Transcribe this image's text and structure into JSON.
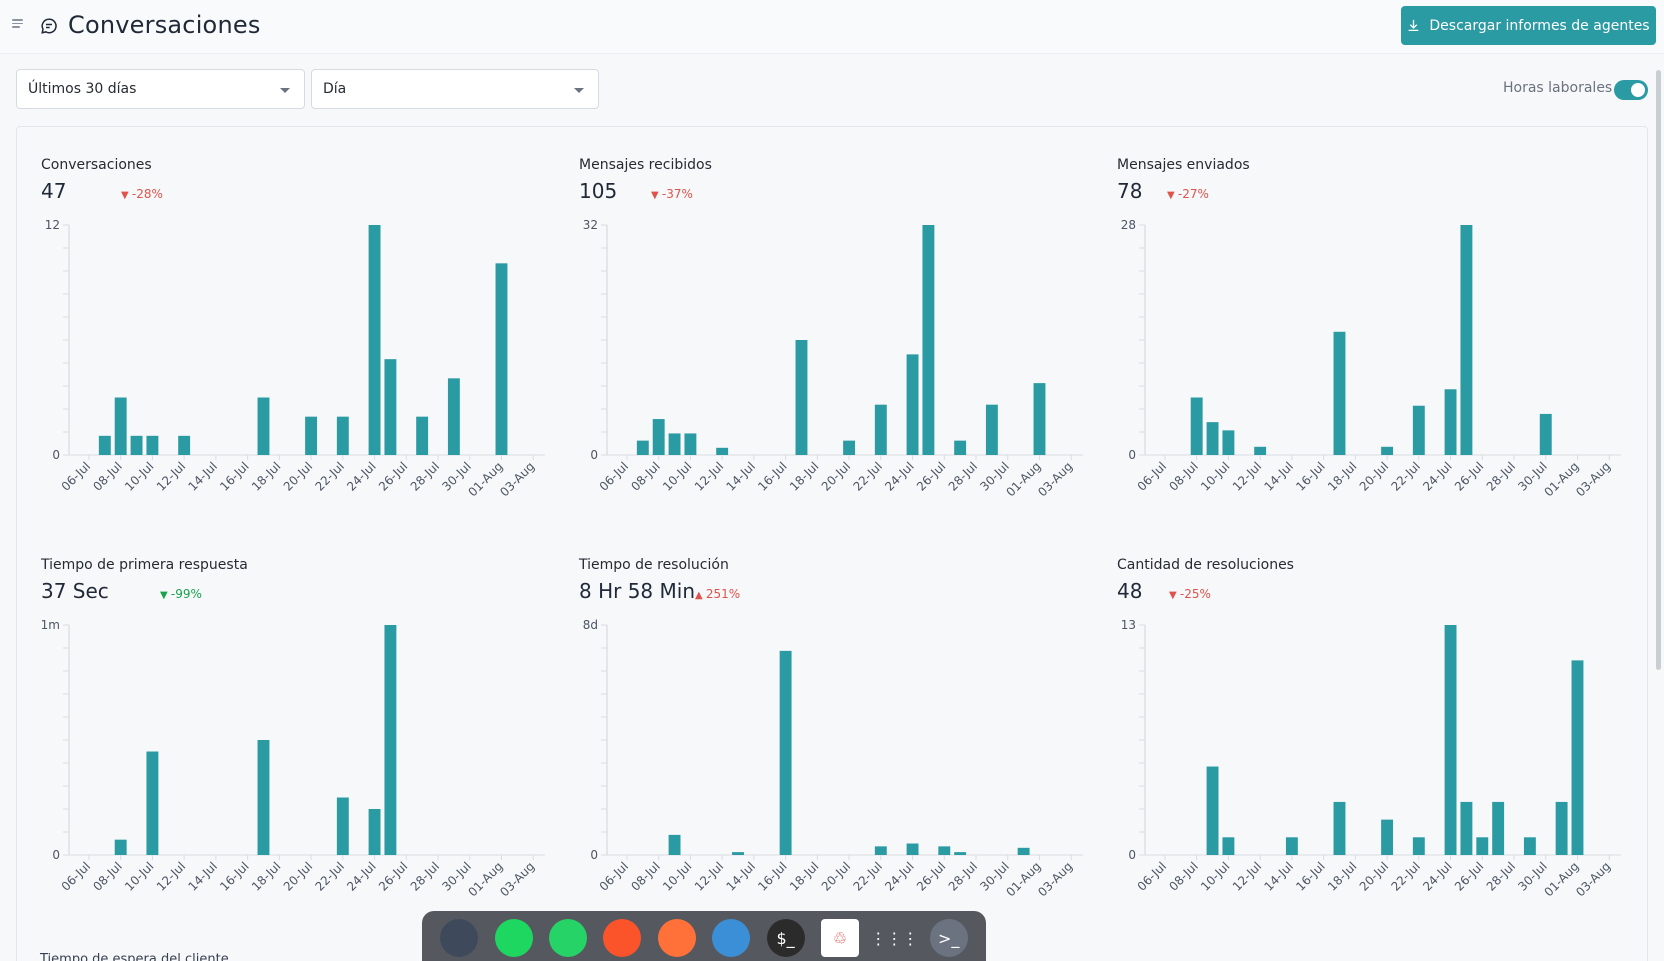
{
  "header": {
    "title": "Conversaciones",
    "download_label": "Descargar informes de agentes"
  },
  "filters": {
    "range": "Últimos 30 días",
    "grouping": "Día",
    "business_hours_label": "Horas laborales",
    "business_hours_on": true
  },
  "colors": {
    "accent": "#2a9aa3",
    "bar": "#2a9aa3",
    "negative": "#e0534a",
    "positive": "#16a34a"
  },
  "metrics": [
    {
      "title": "Conversaciones",
      "value": "47",
      "trend": "-28%",
      "trend_dir": "down",
      "trend_color": "red"
    },
    {
      "title": "Mensajes recibidos",
      "value": "105",
      "trend": "-37%",
      "trend_dir": "down",
      "trend_color": "red"
    },
    {
      "title": "Mensajes enviados",
      "value": "78",
      "trend": "-27%",
      "trend_dir": "down",
      "trend_color": "red"
    },
    {
      "title": "Tiempo de primera respuesta",
      "value": "37 Sec",
      "trend": "-99%",
      "trend_dir": "down",
      "trend_color": "green"
    },
    {
      "title": "Tiempo de resolución",
      "value": "8 Hr 58 Min",
      "trend": "251%",
      "trend_dir": "up",
      "trend_color": "red"
    },
    {
      "title": "Cantidad de resoluciones",
      "value": "48",
      "trend": "-25%",
      "trend_dir": "down",
      "trend_color": "red"
    }
  ],
  "chart_data": [
    {
      "type": "bar",
      "x_tick_labels": [
        "06-Jul",
        "08-Jul",
        "10-Jul",
        "12-Jul",
        "14-Jul",
        "16-Jul",
        "18-Jul",
        "20-Jul",
        "22-Jul",
        "24-Jul",
        "26-Jul",
        "28-Jul",
        "30-Jul",
        "01-Aug",
        "03-Aug"
      ],
      "y_tick_labels": [
        "12",
        "0"
      ],
      "ylim": [
        0,
        12
      ],
      "values": [
        0,
        1,
        3,
        1,
        1,
        0,
        1,
        0,
        0,
        0,
        0,
        3,
        0,
        0,
        2,
        0,
        2,
        0,
        12,
        5,
        0,
        2,
        0,
        4,
        0,
        0,
        10,
        0,
        0,
        0
      ]
    },
    {
      "type": "bar",
      "x_tick_labels": [
        "06-Jul",
        "08-Jul",
        "10-Jul",
        "12-Jul",
        "14-Jul",
        "16-Jul",
        "18-Jul",
        "20-Jul",
        "22-Jul",
        "24-Jul",
        "26-Jul",
        "28-Jul",
        "30-Jul",
        "01-Aug",
        "03-Aug"
      ],
      "y_tick_labels": [
        "32",
        "0"
      ],
      "ylim": [
        0,
        32
      ],
      "values": [
        0,
        2,
        5,
        3,
        3,
        0,
        1,
        0,
        0,
        0,
        0,
        16,
        0,
        0,
        2,
        0,
        7,
        0,
        14,
        32,
        0,
        2,
        0,
        7,
        0,
        0,
        10,
        0,
        0,
        0
      ]
    },
    {
      "type": "bar",
      "x_tick_labels": [
        "06-Jul",
        "08-Jul",
        "10-Jul",
        "12-Jul",
        "14-Jul",
        "16-Jul",
        "18-Jul",
        "20-Jul",
        "22-Jul",
        "24-Jul",
        "26-Jul",
        "28-Jul",
        "30-Jul",
        "01-Aug",
        "03-Aug"
      ],
      "y_tick_labels": [
        "28",
        "0"
      ],
      "ylim": [
        0,
        28
      ],
      "values": [
        0,
        0,
        7,
        4,
        3,
        0,
        1,
        0,
        0,
        0,
        0,
        15,
        0,
        0,
        1,
        0,
        6,
        0,
        8,
        28,
        0,
        0,
        0,
        0,
        5,
        0,
        0,
        0,
        0,
        0
      ]
    },
    {
      "type": "bar",
      "x_tick_labels": [
        "06-Jul",
        "08-Jul",
        "10-Jul",
        "12-Jul",
        "14-Jul",
        "16-Jul",
        "18-Jul",
        "20-Jul",
        "22-Jul",
        "24-Jul",
        "26-Jul",
        "28-Jul",
        "30-Jul",
        "01-Aug",
        "03-Aug"
      ],
      "y_tick_labels": [
        "1m",
        "0"
      ],
      "ylim": [
        0,
        60
      ],
      "values": [
        0,
        0,
        4,
        0,
        27,
        0,
        0,
        0,
        0,
        0,
        0,
        30,
        0,
        0,
        0,
        0,
        15,
        0,
        12,
        60,
        0,
        0,
        0,
        0,
        0,
        0,
        0,
        0,
        0,
        0
      ]
    },
    {
      "type": "bar",
      "x_tick_labels": [
        "06-Jul",
        "08-Jul",
        "10-Jul",
        "12-Jul",
        "14-Jul",
        "16-Jul",
        "18-Jul",
        "20-Jul",
        "22-Jul",
        "24-Jul",
        "26-Jul",
        "28-Jul",
        "30-Jul",
        "01-Aug",
        "03-Aug"
      ],
      "y_tick_labels": [
        "8d",
        "0"
      ],
      "ylim": [
        0,
        8
      ],
      "values": [
        0,
        0,
        0,
        0.7,
        0,
        0,
        0,
        0.1,
        0,
        0,
        7.1,
        0,
        0,
        0,
        0,
        0,
        0.3,
        0,
        0.4,
        0,
        0.3,
        0.1,
        0,
        0,
        0,
        0.25,
        0,
        0,
        0,
        0
      ]
    },
    {
      "type": "bar",
      "x_tick_labels": [
        "06-Jul",
        "08-Jul",
        "10-Jul",
        "12-Jul",
        "14-Jul",
        "16-Jul",
        "18-Jul",
        "20-Jul",
        "22-Jul",
        "24-Jul",
        "26-Jul",
        "28-Jul",
        "30-Jul",
        "01-Aug",
        "03-Aug"
      ],
      "y_tick_labels": [
        "13",
        "0"
      ],
      "ylim": [
        0,
        13
      ],
      "values": [
        0,
        0,
        0,
        5,
        1,
        0,
        0,
        0,
        1,
        0,
        0,
        3,
        0,
        0,
        2,
        0,
        1,
        0,
        13,
        3,
        1,
        3,
        0,
        1,
        0,
        3,
        11,
        0,
        0,
        0
      ]
    }
  ],
  "footer": {
    "partial_label": "Tiempo de espera del cliente"
  },
  "dock": [
    {
      "name": "files-icon",
      "glyph": "",
      "bg": "#3e4a5c"
    },
    {
      "name": "spotify-icon",
      "glyph": "",
      "bg": "#1ed760"
    },
    {
      "name": "whatsapp-icon",
      "glyph": "",
      "bg": "#25d366"
    },
    {
      "name": "brave-icon",
      "glyph": "",
      "bg": "#fb542b"
    },
    {
      "name": "firefox-icon",
      "glyph": "",
      "bg": "#ff7139"
    },
    {
      "name": "quotes-icon",
      "glyph": "",
      "bg": "#3b8fd6"
    },
    {
      "name": "terminal-icon",
      "glyph": "$_",
      "bg": "#2b2b2b"
    },
    {
      "name": "recycle-icon",
      "glyph": "♲",
      "bg": "#ffffff"
    },
    {
      "name": "app-grid-icon",
      "glyph": "⋮⋮⋮",
      "bg": "transparent"
    },
    {
      "name": "shell-icon",
      "glyph": ">_",
      "bg": "#6b7280"
    }
  ]
}
